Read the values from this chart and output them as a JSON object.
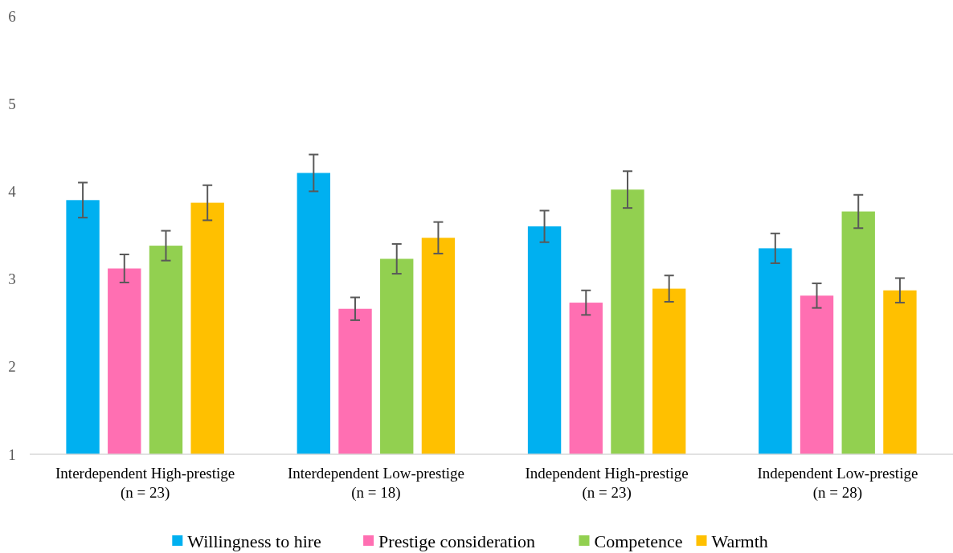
{
  "chart_data": {
    "type": "bar",
    "categories": [
      "Interdependent High-prestige\n(n = 23)",
      "Interdependent Low-prestige\n(n = 18)",
      "Independent High-prestige\n(n = 23)",
      "Independent Low-prestige\n(n = 28)"
    ],
    "series": [
      {
        "name": "Willingness to hire",
        "color": "#00b0f0",
        "values": [
          3.9,
          4.21,
          3.6,
          3.35
        ],
        "errors": [
          0.2,
          0.21,
          0.18,
          0.17
        ]
      },
      {
        "name": "Prestige consideration",
        "color": "#ff6fb2",
        "values": [
          3.12,
          2.66,
          2.73,
          2.81
        ],
        "errors": [
          0.16,
          0.13,
          0.14,
          0.14
        ]
      },
      {
        "name": "Competence",
        "color": "#92d050",
        "values": [
          3.38,
          3.23,
          4.02,
          3.77
        ],
        "errors": [
          0.17,
          0.17,
          0.21,
          0.19
        ]
      },
      {
        "name": "Warmth",
        "color": "#ffc000",
        "values": [
          3.87,
          3.47,
          2.89,
          2.87
        ],
        "errors": [
          0.2,
          0.18,
          0.15,
          0.14
        ]
      }
    ],
    "ylim": [
      1,
      6
    ],
    "yticks": [
      1,
      2,
      3,
      4,
      5,
      6
    ],
    "grid": false,
    "legend": "bottom"
  }
}
